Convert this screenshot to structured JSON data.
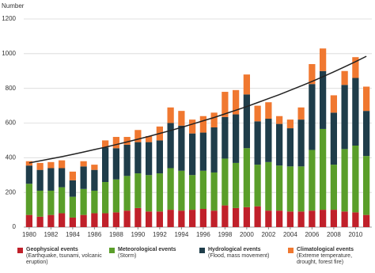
{
  "chart_data": {
    "type": "stacked-bar",
    "y_label": "Number",
    "categories": [
      "1980",
      null,
      "1982",
      null,
      "1984",
      null,
      "1986",
      null,
      "1988",
      null,
      "1990",
      null,
      "1992",
      null,
      "1994",
      null,
      "1996",
      null,
      "1998",
      null,
      "2000",
      null,
      "2002",
      null,
      "2004",
      null,
      "2006",
      null,
      "2008",
      null,
      "2010",
      null
    ],
    "ylim": [
      0,
      1200
    ],
    "yticks": [
      0,
      200,
      400,
      600,
      800,
      1000,
      1200
    ],
    "grid": true,
    "series": [
      {
        "name": "Geophysical events",
        "description": "(Earthquake, tsunami, volcanic eruption)",
        "color": "#c0202a",
        "values": [
          70,
          60,
          70,
          80,
          55,
          70,
          80,
          80,
          85,
          95,
          110,
          90,
          90,
          100,
          95,
          100,
          105,
          95,
          125,
          110,
          115,
          120,
          95,
          95,
          90,
          90,
          95,
          100,
          100,
          90,
          85,
          70
        ]
      },
      {
        "name": "Meteorological events",
        "description": "(Storm)",
        "color": "#5a9e2a",
        "values": [
          180,
          150,
          140,
          150,
          120,
          150,
          130,
          180,
          190,
          200,
          200,
          210,
          220,
          240,
          230,
          200,
          220,
          220,
          270,
          260,
          340,
          240,
          280,
          260,
          260,
          260,
          350,
          466,
          260,
          360,
          385,
          340
        ]
      },
      {
        "name": "Hydrological events",
        "description": "(Flood, mass movement)",
        "color": "#1f3d4a",
        "values": [
          105,
          120,
          130,
          110,
          95,
          130,
          120,
          200,
          180,
          180,
          180,
          190,
          190,
          260,
          260,
          240,
          220,
          260,
          240,
          280,
          310,
          250,
          250,
          240,
          220,
          270,
          380,
          334,
          300,
          370,
          390,
          260
        ]
      },
      {
        "name": "Climatological events",
        "description": "(Extreme temperature, drought, forest fire)",
        "color": "#f07830",
        "values": [
          25,
          40,
          35,
          45,
          50,
          30,
          30,
          40,
          65,
          45,
          70,
          35,
          80,
          90,
          85,
          80,
          95,
          85,
          145,
          140,
          115,
          90,
          95,
          45,
          50,
          70,
          115,
          130,
          100,
          80,
          120,
          140
        ]
      }
    ],
    "lines": [
      {
        "color": "#222222",
        "values": [
          370,
          382,
          394,
          406,
          419,
          433,
          447,
          461,
          476,
          491,
          507,
          523,
          540,
          557,
          575,
          594,
          613,
          632,
          653,
          674,
          695,
          718,
          741,
          764,
          789,
          814,
          840,
          867,
          895,
          924,
          954,
          985
        ]
      }
    ]
  }
}
